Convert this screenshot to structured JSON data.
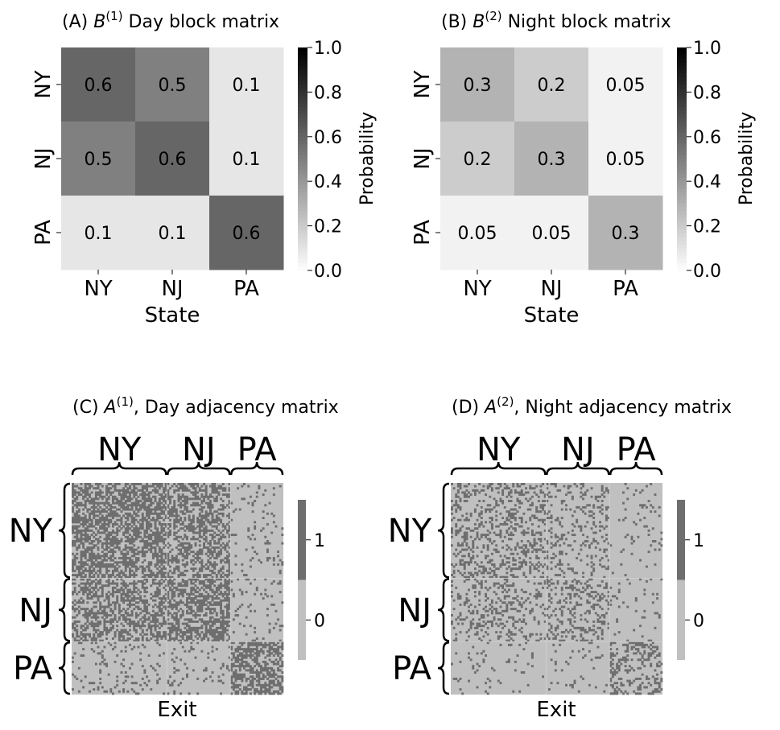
{
  "chart_data": [
    {
      "type": "heatmap",
      "panel": "A",
      "title_prefix": "(A) ",
      "title_symbol": "B",
      "title_superscript": "(1)",
      "title_suffix": " Day block matrix",
      "rows": [
        "NY",
        "NJ",
        "PA"
      ],
      "columns": [
        "NY",
        "NJ",
        "PA"
      ],
      "values": [
        [
          0.6,
          0.5,
          0.1
        ],
        [
          0.5,
          0.6,
          0.1
        ],
        [
          0.1,
          0.1,
          0.6
        ]
      ],
      "value_labels": [
        [
          "0.6",
          "0.5",
          "0.1"
        ],
        [
          "0.5",
          "0.6",
          "0.1"
        ],
        [
          "0.1",
          "0.1",
          "0.6"
        ]
      ],
      "xlabel": "State",
      "ylabel": "",
      "colorbar": {
        "label": "Probability",
        "range": [
          0.0,
          1.0
        ],
        "ticks": [
          "0.0",
          "0.2",
          "0.4",
          "0.6",
          "0.8",
          "1.0"
        ],
        "colormap": "Greys"
      }
    },
    {
      "type": "heatmap",
      "panel": "B",
      "title_prefix": "(B) ",
      "title_symbol": "B",
      "title_superscript": "(2)",
      "title_suffix": " Night block matrix",
      "rows": [
        "NY",
        "NJ",
        "PA"
      ],
      "columns": [
        "NY",
        "NJ",
        "PA"
      ],
      "values": [
        [
          0.3,
          0.2,
          0.05
        ],
        [
          0.2,
          0.3,
          0.05
        ],
        [
          0.05,
          0.05,
          0.3
        ]
      ],
      "value_labels": [
        [
          "0.3",
          "0.2",
          "0.05"
        ],
        [
          "0.2",
          "0.3",
          "0.05"
        ],
        [
          "0.05",
          "0.05",
          "0.3"
        ]
      ],
      "xlabel": "State",
      "ylabel": "",
      "colorbar": {
        "label": "Probability",
        "range": [
          0.0,
          1.0
        ],
        "ticks": [
          "0.0",
          "0.2",
          "0.4",
          "0.6",
          "0.8",
          "1.0"
        ],
        "colormap": "Greys"
      }
    },
    {
      "type": "heatmap",
      "panel": "C",
      "title_prefix": "(C) ",
      "title_symbol": "A",
      "title_superscript": "(1)",
      "title_suffix": ", Day adjacency matrix",
      "groups": [
        "NY",
        "NJ",
        "PA"
      ],
      "group_sizes": [
        45,
        30,
        25
      ],
      "edge_probabilities": [
        [
          0.6,
          0.5,
          0.1
        ],
        [
          0.5,
          0.6,
          0.1
        ],
        [
          0.1,
          0.1,
          0.6
        ]
      ],
      "xlabel": "Exit",
      "colorbar": {
        "ticks": [
          "0",
          "1"
        ],
        "colors": [
          "#c0c0c0",
          "#6e6e6e"
        ]
      },
      "seed": 7
    },
    {
      "type": "heatmap",
      "panel": "D",
      "title_prefix": "(D) ",
      "title_symbol": "A",
      "title_superscript": "(2)",
      "title_suffix": ", Night adjacency matrix",
      "groups": [
        "NY",
        "NJ",
        "PA"
      ],
      "group_sizes": [
        45,
        30,
        25
      ],
      "edge_probabilities": [
        [
          0.3,
          0.2,
          0.05
        ],
        [
          0.2,
          0.3,
          0.05
        ],
        [
          0.05,
          0.05,
          0.3
        ]
      ],
      "xlabel": "Exit",
      "colorbar": {
        "ticks": [
          "0",
          "1"
        ],
        "colors": [
          "#c0c0c0",
          "#6e6e6e"
        ]
      },
      "seed": 13
    }
  ]
}
